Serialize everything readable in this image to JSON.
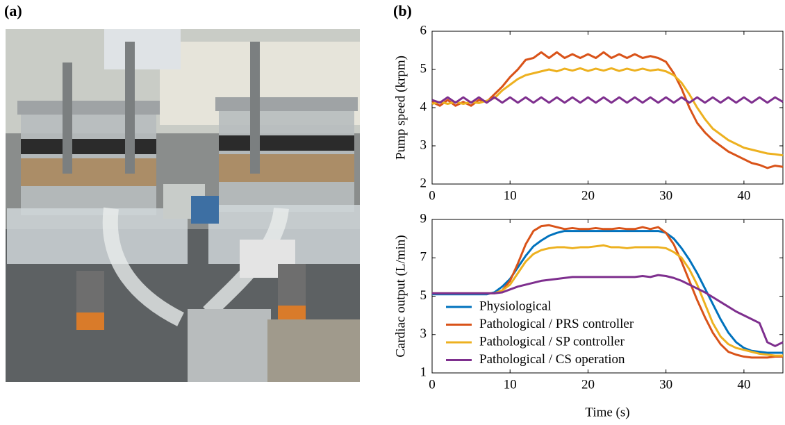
{
  "panels": {
    "a": "(a)",
    "b": "(b)"
  },
  "chart_data": [
    {
      "type": "line",
      "ylabel": "Pump speed (krpm)",
      "x": [
        0,
        1,
        2,
        3,
        4,
        5,
        6,
        7,
        8,
        9,
        10,
        11,
        12,
        13,
        14,
        15,
        16,
        17,
        18,
        19,
        20,
        21,
        22,
        23,
        24,
        25,
        26,
        27,
        28,
        29,
        30,
        31,
        32,
        33,
        34,
        35,
        36,
        37,
        38,
        39,
        40,
        41,
        42,
        43,
        44,
        45
      ],
      "xlim": [
        0,
        45
      ],
      "xticks": [
        0,
        10,
        20,
        30,
        40
      ],
      "ylim": [
        2,
        6
      ],
      "yticks": [
        2,
        3,
        4,
        5,
        6
      ],
      "series": [
        {
          "color": "#D95319",
          "values": [
            4.15,
            4.05,
            4.2,
            4.05,
            4.15,
            4.05,
            4.2,
            4.15,
            4.35,
            4.55,
            4.8,
            5.0,
            5.25,
            5.3,
            5.45,
            5.3,
            5.45,
            5.3,
            5.4,
            5.3,
            5.4,
            5.3,
            5.45,
            5.3,
            5.4,
            5.3,
            5.4,
            5.3,
            5.35,
            5.3,
            5.2,
            4.9,
            4.5,
            4.0,
            3.6,
            3.35,
            3.15,
            3.0,
            2.85,
            2.75,
            2.65,
            2.55,
            2.5,
            2.42,
            2.48,
            2.45
          ]
        },
        {
          "color": "#EDB120",
          "values": [
            4.1,
            4.15,
            4.1,
            4.15,
            4.1,
            4.15,
            4.12,
            4.18,
            4.25,
            4.45,
            4.6,
            4.75,
            4.85,
            4.9,
            4.95,
            5.0,
            4.95,
            5.02,
            4.97,
            5.03,
            4.96,
            5.02,
            4.97,
            5.03,
            4.96,
            5.02,
            4.97,
            5.02,
            4.97,
            5.0,
            4.95,
            4.85,
            4.65,
            4.35,
            4.0,
            3.7,
            3.45,
            3.3,
            3.15,
            3.05,
            2.95,
            2.9,
            2.85,
            2.8,
            2.78,
            2.75
          ]
        },
        {
          "color": "#7E2F8E",
          "values": [
            4.2,
            4.13,
            4.27,
            4.13,
            4.27,
            4.13,
            4.27,
            4.13,
            4.27,
            4.13,
            4.27,
            4.13,
            4.27,
            4.13,
            4.27,
            4.13,
            4.27,
            4.13,
            4.27,
            4.13,
            4.27,
            4.13,
            4.27,
            4.13,
            4.27,
            4.13,
            4.27,
            4.13,
            4.27,
            4.13,
            4.27,
            4.13,
            4.27,
            4.13,
            4.27,
            4.13,
            4.27,
            4.13,
            4.27,
            4.13,
            4.27,
            4.13,
            4.27,
            4.13,
            4.27,
            4.15
          ]
        }
      ]
    },
    {
      "type": "line",
      "xlabel": "Time (s)",
      "ylabel": "Cardiac output (L/min)",
      "x": [
        0,
        1,
        2,
        3,
        4,
        5,
        6,
        7,
        8,
        9,
        10,
        11,
        12,
        13,
        14,
        15,
        16,
        17,
        18,
        19,
        20,
        21,
        22,
        23,
        24,
        25,
        26,
        27,
        28,
        29,
        30,
        31,
        32,
        33,
        34,
        35,
        36,
        37,
        38,
        39,
        40,
        41,
        42,
        43,
        44,
        45
      ],
      "xlim": [
        0,
        45
      ],
      "xticks": [
        0,
        10,
        20,
        30,
        40
      ],
      "ylim": [
        1,
        9
      ],
      "yticks": [
        1,
        3,
        5,
        7,
        9
      ],
      "legend": "lower left",
      "series": [
        {
          "name": "Physiological",
          "color": "#0072BD",
          "values": [
            5.1,
            5.1,
            5.1,
            5.1,
            5.1,
            5.1,
            5.1,
            5.1,
            5.2,
            5.5,
            5.9,
            6.5,
            7.1,
            7.6,
            7.9,
            8.15,
            8.3,
            8.4,
            8.4,
            8.4,
            8.4,
            8.4,
            8.4,
            8.4,
            8.4,
            8.4,
            8.4,
            8.4,
            8.4,
            8.4,
            8.3,
            8.0,
            7.5,
            6.9,
            6.2,
            5.4,
            4.6,
            3.8,
            3.1,
            2.6,
            2.3,
            2.15,
            2.1,
            2.05,
            2.05,
            2.05
          ]
        },
        {
          "name": "Pathological / PRS controller",
          "color": "#D95319",
          "values": [
            5.15,
            5.15,
            5.15,
            5.15,
            5.15,
            5.15,
            5.15,
            5.15,
            5.15,
            5.3,
            5.8,
            6.7,
            7.7,
            8.4,
            8.65,
            8.7,
            8.6,
            8.5,
            8.55,
            8.5,
            8.5,
            8.55,
            8.5,
            8.5,
            8.55,
            8.5,
            8.5,
            8.6,
            8.5,
            8.6,
            8.3,
            7.7,
            6.8,
            5.8,
            4.8,
            3.9,
            3.1,
            2.5,
            2.1,
            1.95,
            1.85,
            1.8,
            1.8,
            1.8,
            1.85,
            1.85
          ]
        },
        {
          "name": "Pathological / SP controller",
          "color": "#EDB120",
          "values": [
            5.15,
            5.15,
            5.15,
            5.15,
            5.15,
            5.15,
            5.15,
            5.15,
            5.15,
            5.3,
            5.6,
            6.2,
            6.8,
            7.2,
            7.4,
            7.5,
            7.55,
            7.55,
            7.5,
            7.55,
            7.55,
            7.6,
            7.65,
            7.55,
            7.55,
            7.5,
            7.55,
            7.55,
            7.55,
            7.55,
            7.5,
            7.3,
            7.0,
            6.4,
            5.6,
            4.6,
            3.6,
            2.9,
            2.5,
            2.3,
            2.2,
            2.1,
            2.0,
            1.95,
            1.9,
            1.9
          ]
        },
        {
          "name": "Pathological / CS operation",
          "color": "#7E2F8E",
          "values": [
            5.15,
            5.15,
            5.15,
            5.15,
            5.15,
            5.15,
            5.15,
            5.15,
            5.15,
            5.2,
            5.35,
            5.5,
            5.6,
            5.7,
            5.8,
            5.85,
            5.9,
            5.95,
            6.0,
            6.0,
            6.0,
            6.0,
            6.0,
            6.0,
            6.0,
            6.0,
            6.0,
            6.05,
            6.0,
            6.1,
            6.05,
            5.95,
            5.8,
            5.6,
            5.4,
            5.2,
            4.95,
            4.7,
            4.45,
            4.2,
            4.0,
            3.8,
            3.6,
            2.6,
            2.4,
            2.6
          ]
        }
      ]
    }
  ]
}
